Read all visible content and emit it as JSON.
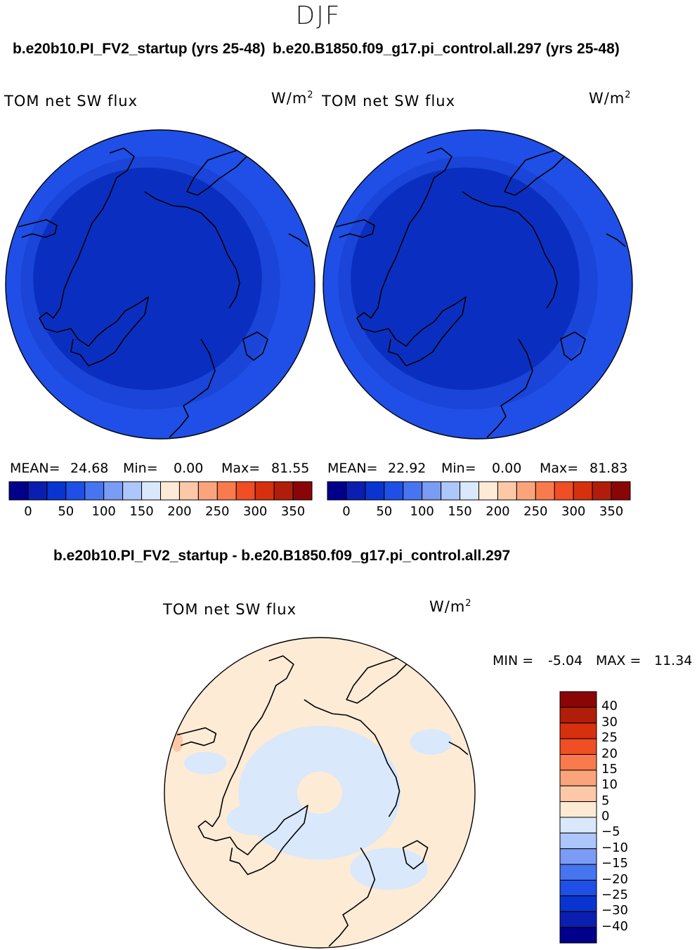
{
  "season": "DJF",
  "panels": [
    {
      "title": "b.e20b10.PI_FV2_startup (yrs 25-48)",
      "variable": "TOM net SW flux",
      "units": "W/m",
      "units_sup": "2",
      "mean_label": "MEAN=",
      "mean_value": "24.68",
      "min_label": "Min=",
      "min_value": "0.00",
      "max_label": "Max=",
      "max_value": "81.55"
    },
    {
      "title": "b.e20.B1850.f09_g17.pi_control.all.297 (yrs 25-48)",
      "variable": "TOM net SW flux",
      "units": "W/m",
      "units_sup": "2",
      "mean_label": "MEAN=",
      "mean_value": "22.92",
      "min_label": "Min=",
      "min_value": "0.00",
      "max_label": "Max=",
      "max_value": "81.83"
    }
  ],
  "abs_colorbar": {
    "colors": [
      "#00008b",
      "#0a1fb0",
      "#0a34d0",
      "#1f4fe6",
      "#4774f0",
      "#7b9cf5",
      "#adc6fb",
      "#d9e8fb",
      "#fdebd6",
      "#fcc8a8",
      "#fba47c",
      "#f97a4c",
      "#f04e24",
      "#d7300f",
      "#b01d0a",
      "#8a0606"
    ],
    "ticks": [
      "0",
      "50",
      "100",
      "150",
      "200",
      "250",
      "300",
      "350"
    ]
  },
  "diff": {
    "title": "b.e20b10.PI_FV2_startup - b.e20.B1850.f09_g17.pi_control.all.297",
    "variable": "TOM net SW flux",
    "units": "W/m",
    "units_sup": "2",
    "min_label": "MIN =",
    "min_value": "-5.04",
    "max_label": "MAX =",
    "max_value": "11.34"
  },
  "diff_colorbar": {
    "colors_top_to_bottom": [
      "#8a0606",
      "#b01d0a",
      "#d7300f",
      "#f04e24",
      "#f97a4c",
      "#fba47c",
      "#fcc8a8",
      "#fdebd6",
      "#d9e8fb",
      "#adc6fb",
      "#7b9cf5",
      "#4774f0",
      "#1f4fe6",
      "#0a34d0",
      "#0a1fb0",
      "#00008b"
    ],
    "labels_top_to_bottom": [
      "40",
      "30",
      "25",
      "20",
      "15",
      "10",
      "5",
      "0",
      "−5",
      "−10",
      "−15",
      "−20",
      "−25",
      "−30",
      "−40"
    ]
  },
  "chart_data": [
    {
      "type": "heatmap",
      "title": "b.e20b10.PI_FV2_startup (yrs 25-48)",
      "variable": "TOM net SW flux",
      "units": "W/m2",
      "projection": "north polar stereographic",
      "mean": 24.68,
      "min": 0.0,
      "max": 81.55,
      "levels": [
        0,
        25,
        50,
        75,
        100,
        125,
        150,
        175,
        200,
        225,
        250,
        275,
        300,
        325,
        350
      ]
    },
    {
      "type": "heatmap",
      "title": "b.e20.B1850.f09_g17.pi_control.all.297 (yrs 25-48)",
      "variable": "TOM net SW flux",
      "units": "W/m2",
      "projection": "north polar stereographic",
      "mean": 22.92,
      "min": 0.0,
      "max": 81.83,
      "levels": [
        0,
        25,
        50,
        75,
        100,
        125,
        150,
        175,
        200,
        225,
        250,
        275,
        300,
        325,
        350
      ]
    },
    {
      "type": "heatmap",
      "title": "b.e20b10.PI_FV2_startup - b.e20.B1850.f09_g17.pi_control.all.297",
      "variable": "TOM net SW flux",
      "units": "W/m2",
      "projection": "north polar stereographic",
      "min": -5.04,
      "max": 11.34,
      "levels": [
        -40,
        -30,
        -25,
        -20,
        -15,
        -10,
        -5,
        0,
        5,
        10,
        15,
        20,
        25,
        30,
        40
      ]
    }
  ]
}
